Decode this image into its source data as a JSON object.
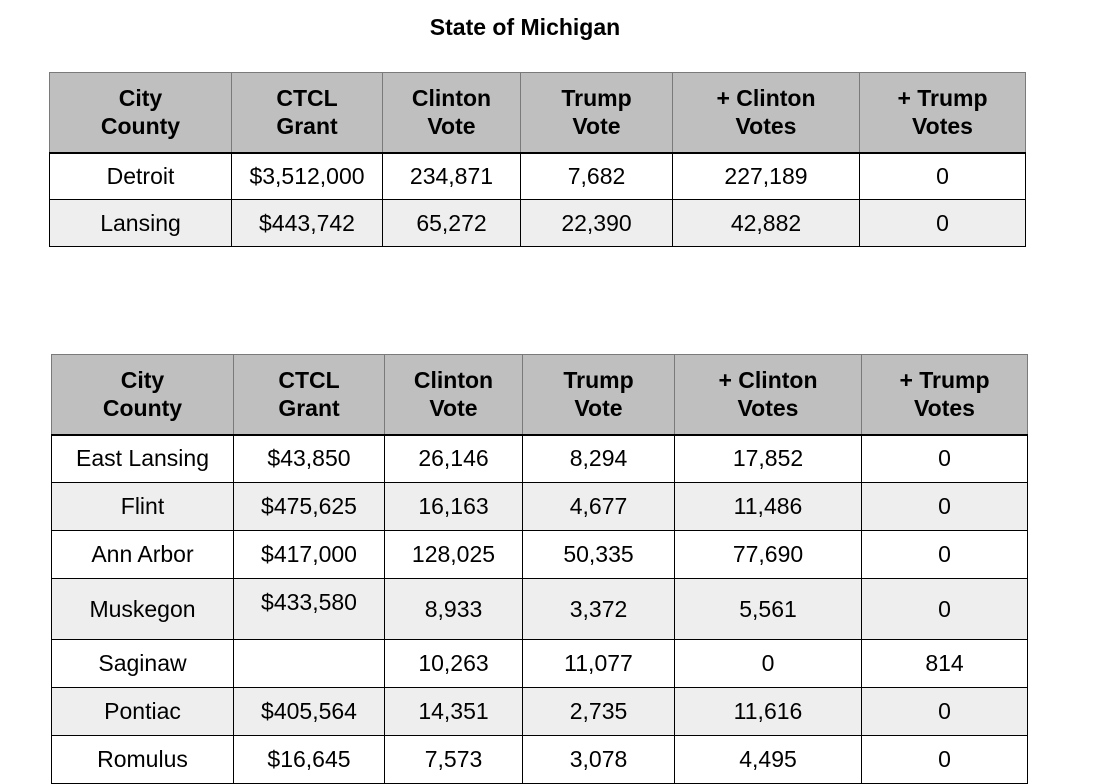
{
  "title": "State of Michigan",
  "columns": [
    [
      "City",
      "County"
    ],
    [
      "CTCL",
      "Grant"
    ],
    [
      "Clinton",
      "Vote"
    ],
    [
      "Trump",
      "Vote"
    ],
    [
      "+ Clinton",
      "Votes"
    ],
    [
      "+ Trump",
      "Votes"
    ]
  ],
  "table1": {
    "rows": [
      [
        "Detroit",
        "$3,512,000",
        "234,871",
        "7,682",
        "227,189",
        "0"
      ],
      [
        "Lansing",
        "$443,742",
        "65,272",
        "22,390",
        "42,882",
        "0"
      ]
    ]
  },
  "table2": {
    "rows": [
      [
        "East Lansing",
        "$43,850",
        "26,146",
        "8,294",
        "17,852",
        "0"
      ],
      [
        "Flint",
        "$475,625",
        "16,163",
        "4,677",
        "11,486",
        "0"
      ],
      [
        "Ann Arbor",
        "$417,000",
        "128,025",
        "50,335",
        "77,690",
        "0"
      ],
      [
        "Muskegon",
        "$433,580",
        "8,933",
        "3,372",
        "5,561",
        "0"
      ],
      [
        "Saginaw",
        "",
        "10,263",
        "11,077",
        "0",
        "814"
      ],
      [
        "Pontiac",
        "$405,564",
        "14,351",
        "2,735",
        "11,616",
        "0"
      ],
      [
        "Romulus",
        "$16,645",
        "7,573",
        "3,078",
        "4,495",
        "0"
      ]
    ]
  }
}
